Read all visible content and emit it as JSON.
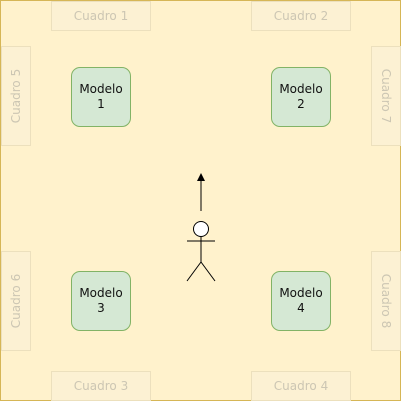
{
  "frames": {
    "top_left": "Cuadro 1",
    "top_right": "Cuadro 2",
    "bottom_left": "Cuadro 3",
    "bottom_right": "Cuadro 4",
    "left_top": "Cuadro 5",
    "left_bottom": "Cuadro 6",
    "right_top": "Cuadro 7",
    "right_bottom": "Cuadro 8"
  },
  "models": {
    "m1": "Modelo\n1",
    "m2": "Modelo\n2",
    "m3": "Modelo\n3",
    "m4": "Modelo\n4"
  },
  "colors": {
    "background": "#fff2cc",
    "model_fill": "#d5e8d4",
    "model_border": "#82b366"
  }
}
